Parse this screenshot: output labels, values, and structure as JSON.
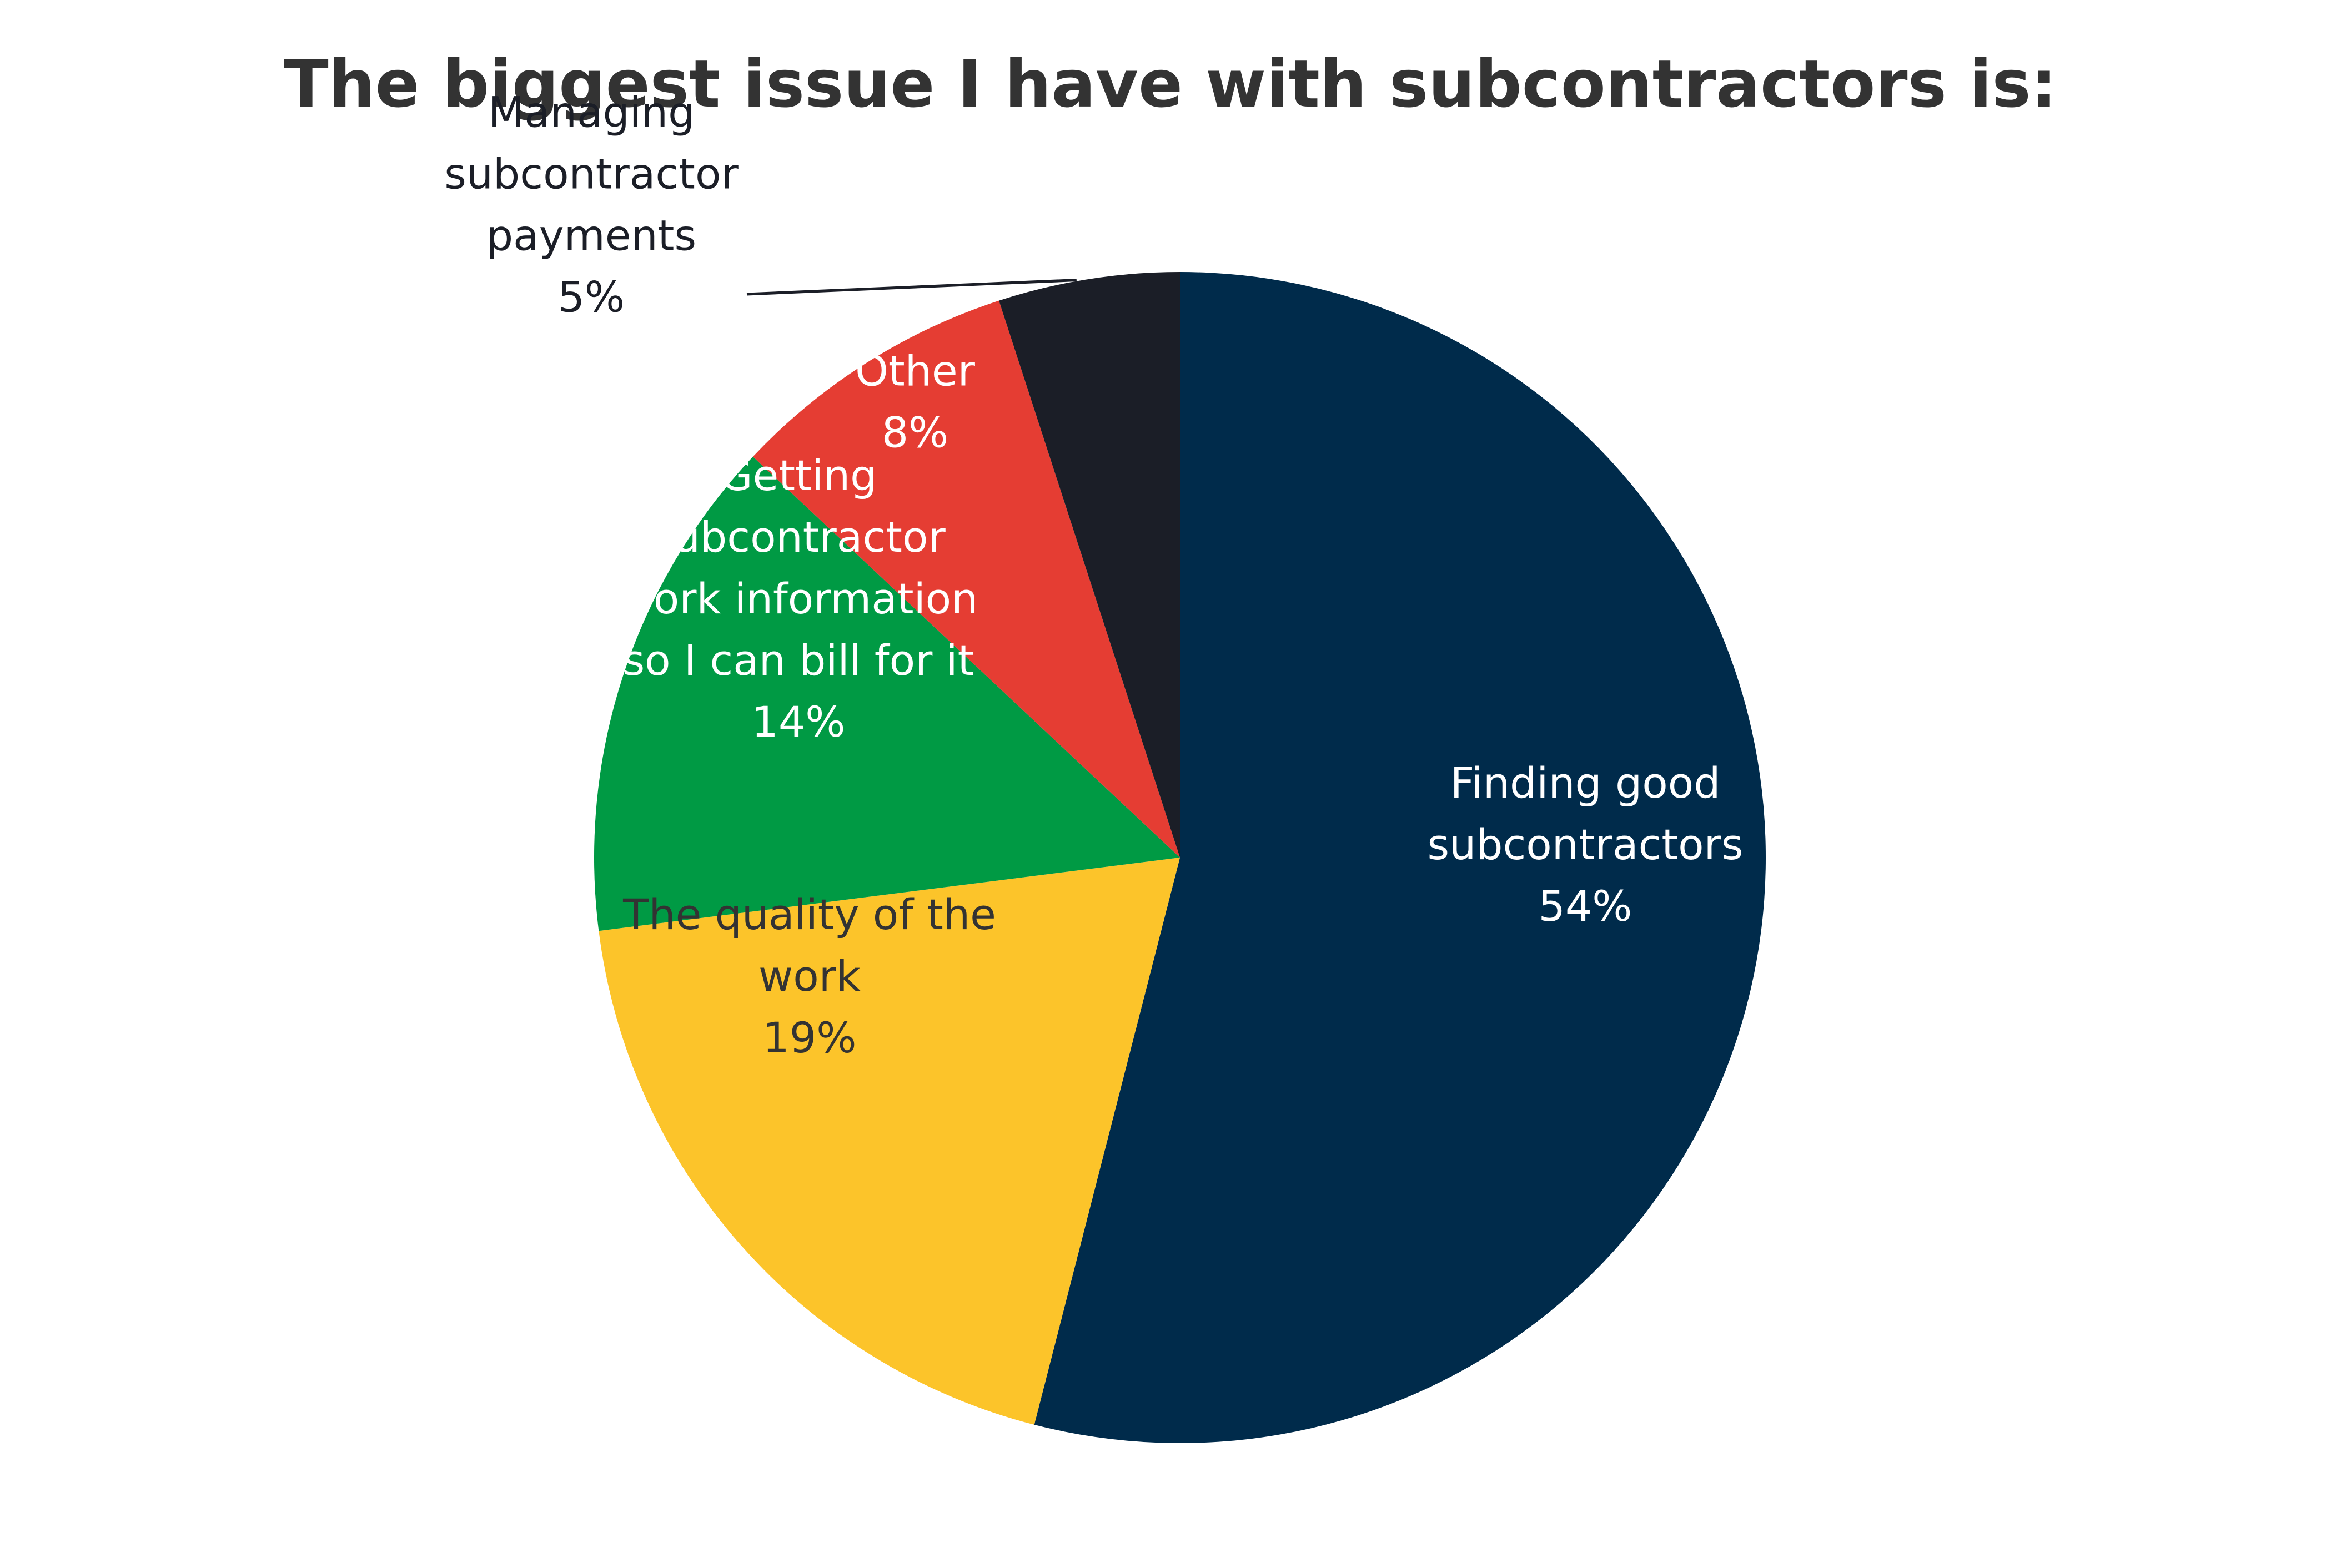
{
  "chart_data": {
    "type": "pie",
    "title": "The biggest issue I have with subcontractors is:",
    "start": "12 o'clock",
    "direction": "clockwise",
    "slices": [
      {
        "label_lines": [
          "Finding good",
          "subcontractors"
        ],
        "value": 54,
        "value_label": "54%",
        "color": "#002b4b",
        "label_color": "#ffffff"
      },
      {
        "label_lines": [
          "The quality of the",
          "work"
        ],
        "value": 19,
        "value_label": "19%",
        "color": "#fcc42a",
        "label_color": "#333333"
      },
      {
        "label_lines": [
          "Getting",
          "subcontractor",
          "work information",
          "so I can bill for it"
        ],
        "value": 14,
        "value_label": "14%",
        "color": "#009a44",
        "label_color": "#ffffff"
      },
      {
        "label_lines": [
          "Other"
        ],
        "value": 8,
        "value_label": "8%",
        "color": "#e53d33",
        "label_color": "#ffffff"
      },
      {
        "label_lines": [
          "Managing",
          "subcontractor",
          "payments"
        ],
        "value": 5,
        "value_label": "5%",
        "color": "#1b1e27",
        "label_color": "#1b1e27",
        "label_outside": true
      }
    ]
  }
}
